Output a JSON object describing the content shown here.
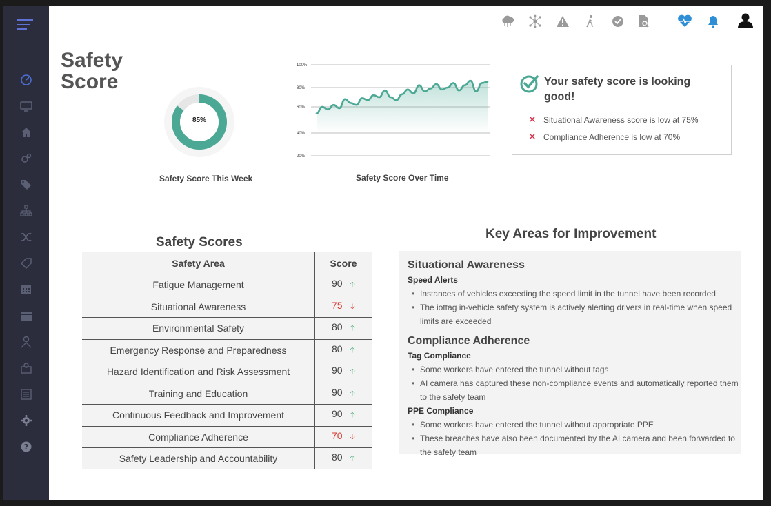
{
  "colors": {
    "sidebar": "#2b2d3c",
    "accent_teal": "#4aa894",
    "heart_blue": "#2f8fd6",
    "bad_red": "#d93a2f",
    "good_green": "#4caf7a"
  },
  "sidebar": {
    "items": [
      {
        "icon": "dashboard-gauge-icon"
      },
      {
        "icon": "monitor-icon"
      },
      {
        "icon": "home-icon"
      },
      {
        "icon": "gears-icon"
      },
      {
        "icon": "tags-icon"
      },
      {
        "icon": "hierarchy-icon"
      },
      {
        "icon": "shuffle-icon"
      },
      {
        "icon": "tag-outline-icon"
      },
      {
        "icon": "calendar-icon"
      },
      {
        "icon": "server-icon"
      },
      {
        "icon": "person-icon"
      },
      {
        "icon": "user-badge-icon"
      },
      {
        "icon": "list-icon"
      },
      {
        "icon": "settings-icon"
      },
      {
        "icon": "help-icon"
      }
    ]
  },
  "topbar": {
    "icons": [
      "cloud-network-icon",
      "network-nodes-icon",
      "warning-icon",
      "walking-person-icon",
      "check-circle-icon",
      "document-search-icon",
      "heart-pulse-icon",
      "bell-icon",
      "user-account-icon"
    ]
  },
  "page": {
    "title": "Safety Score"
  },
  "donut": {
    "value_label": "85%",
    "value": 85,
    "caption": "Safety Score This Week"
  },
  "line_chart": {
    "caption": "Safety Score Over Time",
    "y_ticks": [
      "100%",
      "80%",
      "60%",
      "40%",
      "20%"
    ]
  },
  "chart_data": {
    "type": "area",
    "title": "Safety Score Over Time",
    "y_ticks": [
      "100%",
      "80%",
      "60%",
      "40%",
      "20%"
    ],
    "ylim": [
      20,
      100
    ],
    "x": [
      0,
      1,
      2,
      3,
      4,
      5,
      6,
      7,
      8,
      9,
      10,
      11,
      12,
      13,
      14,
      15,
      16,
      17,
      18,
      19,
      20,
      21,
      22,
      23,
      24,
      25,
      26,
      27,
      28,
      29,
      30
    ],
    "values": [
      55,
      60,
      58,
      62,
      59,
      68,
      64,
      62,
      69,
      67,
      72,
      70,
      77,
      70,
      67,
      73,
      78,
      74,
      82,
      76,
      79,
      83,
      78,
      80,
      84,
      77,
      82,
      86,
      76,
      84,
      85
    ],
    "grid": true
  },
  "summary": {
    "heading": "Your safety score is looking good!",
    "items": [
      "Situational Awareness score is low at 75%",
      "Compliance Adherence is low at 70%"
    ]
  },
  "scores_table": {
    "title": "Safety Scores",
    "headers": [
      "Safety Area",
      "Score"
    ],
    "rows": [
      {
        "area": "Fatigue Management",
        "score": "90",
        "trend": "up"
      },
      {
        "area": "Situational Awareness",
        "score": "75",
        "trend": "down"
      },
      {
        "area": "Environmental Safety",
        "score": "80",
        "trend": "up"
      },
      {
        "area": "Emergency Response and Preparedness",
        "score": "80",
        "trend": "up"
      },
      {
        "area": "Hazard Identification and Risk Assessment",
        "score": "90",
        "trend": "up"
      },
      {
        "area": "Training and Education",
        "score": "90",
        "trend": "up"
      },
      {
        "area": "Continuous Feedback and Improvement",
        "score": "90",
        "trend": "up"
      },
      {
        "area": "Compliance Adherence",
        "score": "70",
        "trend": "down"
      },
      {
        "area": "Safety Leadership and Accountability",
        "score": "80",
        "trend": "up"
      }
    ]
  },
  "improvement": {
    "title": "Key Areas for Improvement",
    "sections": [
      {
        "heading": "Situational Awareness",
        "groups": [
          {
            "subheading": "Speed Alerts",
            "bullets": [
              "Instances of vehicles exceeding the speed limit in the tunnel have been recorded",
              "The iottag in-vehicle safety system is actively alerting drivers in real-time when speed limits are exceeded"
            ]
          }
        ]
      },
      {
        "heading": "Compliance Adherence",
        "groups": [
          {
            "subheading": "Tag Compliance",
            "bullets": [
              "Some workers have entered the tunnel without tags",
              "AI camera has captured these non-compliance events and automatically reported them to the safety team"
            ]
          },
          {
            "subheading": "PPE Compliance",
            "bullets": [
              "Some workers have entered the tunnel without appropriate PPE",
              "These breaches have also been documented by the AI camera and been forwarded to the safety team"
            ]
          }
        ]
      }
    ]
  }
}
